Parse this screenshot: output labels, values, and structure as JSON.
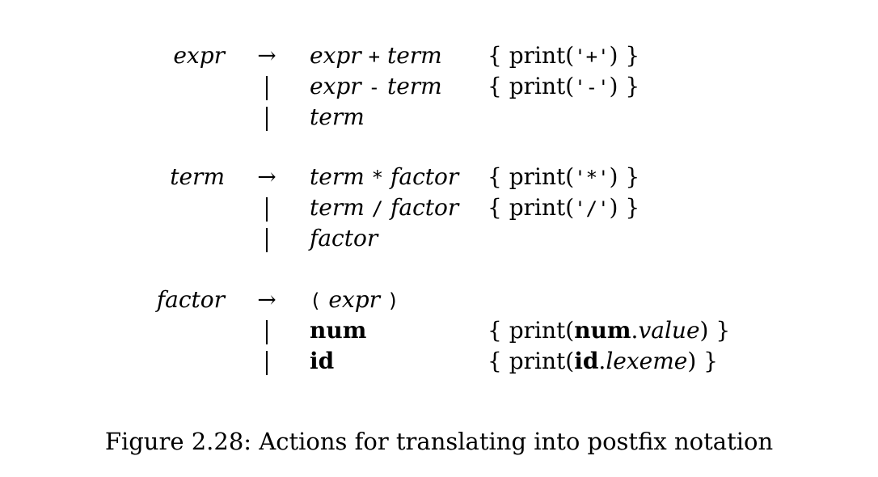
{
  "figure": {
    "caption": "Figure 2.28: Actions for translating into postfix notation"
  },
  "grammar": {
    "arrow": "→",
    "rules": [
      {
        "head": "expr",
        "alternatives": [
          {
            "lead": "→",
            "parts": [
              [
                "expr",
                "it"
              ],
              [
                " ",
                ""
              ],
              [
                "+",
                "tt"
              ],
              [
                " ",
                ""
              ],
              [
                "term",
                "it"
              ]
            ],
            "action": [
              [
                "{ print(",
                ""
              ],
              [
                "'+'",
                "tt"
              ],
              [
                ") }",
                ""
              ]
            ]
          },
          {
            "lead": "|",
            "parts": [
              [
                "expr",
                "it"
              ],
              [
                " ",
                ""
              ],
              [
                "-",
                "tt"
              ],
              [
                " ",
                ""
              ],
              [
                "term",
                "it"
              ]
            ],
            "action": [
              [
                "{ print(",
                ""
              ],
              [
                "'-'",
                "tt"
              ],
              [
                ") }",
                ""
              ]
            ]
          },
          {
            "lead": "|",
            "parts": [
              [
                "term",
                "it"
              ]
            ],
            "action": []
          }
        ]
      },
      {
        "head": "term",
        "alternatives": [
          {
            "lead": "→",
            "parts": [
              [
                "term",
                "it"
              ],
              [
                " ",
                ""
              ],
              [
                "*",
                "tt"
              ],
              [
                " ",
                ""
              ],
              [
                "factor",
                "it"
              ]
            ],
            "action": [
              [
                "{ print(",
                ""
              ],
              [
                "'*'",
                "tt"
              ],
              [
                ") }",
                ""
              ]
            ]
          },
          {
            "lead": "|",
            "parts": [
              [
                "term",
                "it"
              ],
              [
                " ",
                ""
              ],
              [
                "/",
                "tt"
              ],
              [
                " ",
                ""
              ],
              [
                "factor",
                "it"
              ]
            ],
            "action": [
              [
                "{ print(",
                ""
              ],
              [
                "'/'",
                "tt"
              ],
              [
                ") }",
                ""
              ]
            ]
          },
          {
            "lead": "|",
            "parts": [
              [
                "factor",
                "it"
              ]
            ],
            "action": []
          }
        ]
      },
      {
        "head": "factor",
        "alternatives": [
          {
            "lead": "→",
            "parts": [
              [
                "(",
                "tt"
              ],
              [
                " ",
                ""
              ],
              [
                "expr",
                "it"
              ],
              [
                " ",
                ""
              ],
              [
                ")",
                "tt"
              ]
            ],
            "action": []
          },
          {
            "lead": "|",
            "parts": [
              [
                "num",
                "bf"
              ]
            ],
            "action": [
              [
                "{ print(",
                ""
              ],
              [
                "num",
                "bf"
              ],
              [
                ".",
                ""
              ],
              [
                "value",
                "it"
              ],
              [
                ") }",
                ""
              ]
            ]
          },
          {
            "lead": "|",
            "parts": [
              [
                "id",
                "bf"
              ]
            ],
            "action": [
              [
                "{ print(",
                ""
              ],
              [
                "id",
                "bf"
              ],
              [
                ".",
                ""
              ],
              [
                "lexeme",
                "it"
              ],
              [
                ") }",
                ""
              ]
            ]
          }
        ]
      }
    ]
  }
}
